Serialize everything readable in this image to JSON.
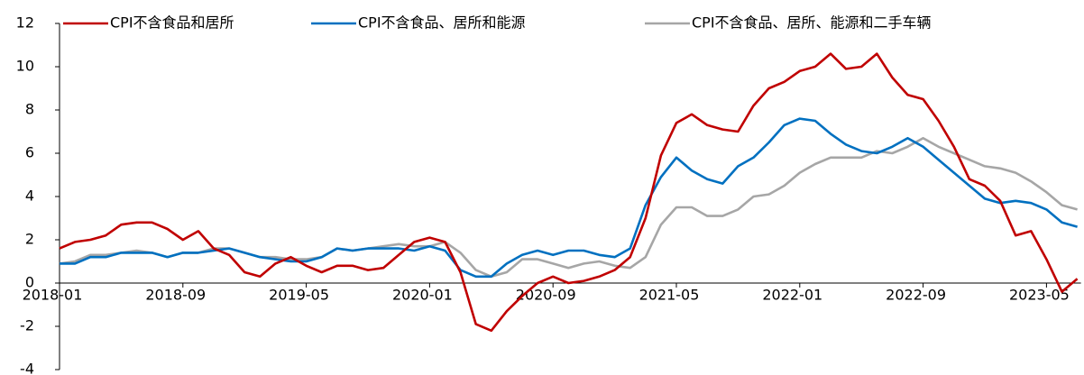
{
  "chart_data": {
    "type": "line",
    "categories": [
      "2018-01",
      null,
      null,
      null,
      null,
      null,
      null,
      null,
      "2018-09",
      null,
      null,
      null,
      null,
      null,
      null,
      null,
      "2019-05",
      null,
      null,
      null,
      null,
      null,
      null,
      null,
      "2020-01",
      null,
      null,
      null,
      null,
      null,
      null,
      null,
      "2020-09",
      null,
      null,
      null,
      null,
      null,
      null,
      null,
      "2021-05",
      null,
      null,
      null,
      null,
      null,
      null,
      null,
      "2022-01",
      null,
      null,
      null,
      null,
      null,
      null,
      null,
      "2022-09",
      null,
      null,
      null,
      null,
      null,
      null,
      null,
      "2023-05",
      null,
      null
    ],
    "series": [
      {
        "name": "CPI不含食品和居所",
        "color": "#c00000",
        "values": [
          1.6,
          1.9,
          2.0,
          2.2,
          2.7,
          2.8,
          2.8,
          2.5,
          2.0,
          2.4,
          1.6,
          1.3,
          0.5,
          0.3,
          0.9,
          1.2,
          0.8,
          0.5,
          0.8,
          0.8,
          0.6,
          0.7,
          1.3,
          1.9,
          2.1,
          1.9,
          0.5,
          -1.9,
          -2.2,
          -1.3,
          -0.6,
          0.0,
          0.3,
          0.0,
          0.1,
          0.3,
          0.6,
          1.2,
          3.0,
          5.9,
          7.4,
          7.8,
          7.3,
          7.1,
          7.0,
          8.2,
          9.0,
          9.3,
          9.8,
          10.0,
          10.6,
          9.9,
          10.0,
          10.6,
          9.5,
          8.7,
          8.5,
          7.5,
          6.3,
          4.8,
          4.5,
          3.8,
          2.2,
          2.4,
          1.1,
          -0.4,
          0.2
        ]
      },
      {
        "name": "CPI不含食品、居所和能源",
        "color": "#0070c0",
        "values": [
          0.9,
          0.9,
          1.2,
          1.2,
          1.4,
          1.4,
          1.4,
          1.2,
          1.4,
          1.4,
          1.5,
          1.6,
          1.4,
          1.2,
          1.1,
          1.0,
          1.0,
          1.2,
          1.6,
          1.5,
          1.6,
          1.6,
          1.6,
          1.5,
          1.7,
          1.5,
          0.6,
          0.3,
          0.3,
          0.9,
          1.3,
          1.5,
          1.3,
          1.5,
          1.5,
          1.3,
          1.2,
          1.6,
          3.6,
          4.9,
          5.8,
          5.2,
          4.8,
          4.6,
          5.4,
          5.8,
          6.5,
          7.3,
          7.6,
          7.5,
          6.9,
          6.4,
          6.1,
          6.0,
          6.3,
          6.7,
          6.3,
          5.7,
          5.1,
          4.5,
          3.9,
          3.7,
          3.8,
          3.7,
          3.4,
          2.8,
          2.6
        ]
      },
      {
        "name": "CPI不含食品、居所、能源和二手车辆",
        "color": "#a6a6a6",
        "values": [
          0.9,
          1.0,
          1.3,
          1.3,
          1.4,
          1.5,
          1.4,
          1.2,
          1.4,
          1.4,
          1.6,
          1.6,
          1.4,
          1.2,
          1.2,
          1.1,
          1.1,
          1.2,
          1.6,
          1.5,
          1.6,
          1.7,
          1.8,
          1.7,
          1.7,
          1.9,
          1.4,
          0.6,
          0.3,
          0.5,
          1.1,
          1.1,
          0.9,
          0.7,
          0.9,
          1.0,
          0.8,
          0.7,
          1.2,
          2.7,
          3.5,
          3.5,
          3.1,
          3.1,
          3.4,
          4.0,
          4.1,
          4.5,
          5.1,
          5.5,
          5.8,
          5.8,
          5.8,
          6.1,
          6.0,
          6.3,
          6.7,
          6.3,
          6.0,
          5.7,
          5.4,
          5.3,
          5.1,
          4.7,
          4.2,
          3.6,
          3.4
        ]
      }
    ],
    "ylim": [
      -4,
      12
    ],
    "yticks": [
      -4,
      -2,
      0,
      2,
      4,
      6,
      8,
      10,
      12
    ]
  }
}
